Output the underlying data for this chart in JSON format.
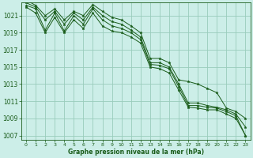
{
  "title": "Graphe pression niveau de la mer (hPa)",
  "bg_color": "#cceee8",
  "grid_color": "#99ccbb",
  "line_color": "#1a5c1a",
  "marker_color": "#1a5c1a",
  "xlim": [
    -0.5,
    23.5
  ],
  "ylim": [
    1006.5,
    1022.5
  ],
  "yticks": [
    1007,
    1009,
    1011,
    1013,
    1015,
    1017,
    1019,
    1021
  ],
  "xticks": [
    0,
    1,
    2,
    3,
    4,
    5,
    6,
    7,
    8,
    9,
    10,
    11,
    12,
    13,
    14,
    15,
    16,
    17,
    18,
    19,
    20,
    21,
    22,
    23
  ],
  "series": [
    [
      1022.2,
      1021.8,
      1019.3,
      1021.3,
      1019.2,
      1021.0,
      1020.0,
      1021.8,
      1020.5,
      1019.8,
      1019.5,
      1019.0,
      1018.2,
      1015.3,
      1015.2,
      1014.8,
      1012.7,
      1010.5,
      1010.5,
      1010.3,
      1010.2,
      1009.8,
      1009.3,
      1007.0
    ],
    [
      1022.0,
      1021.3,
      1019.0,
      1020.8,
      1019.0,
      1020.5,
      1019.5,
      1021.3,
      1019.8,
      1019.2,
      1019.0,
      1018.5,
      1017.8,
      1015.0,
      1014.8,
      1014.3,
      1012.3,
      1010.3,
      1010.2,
      1010.0,
      1010.0,
      1009.5,
      1009.0,
      1007.0
    ],
    [
      1022.5,
      1022.0,
      1020.5,
      1021.5,
      1020.0,
      1021.3,
      1020.5,
      1022.0,
      1021.0,
      1020.3,
      1020.0,
      1019.3,
      1018.5,
      1015.5,
      1015.5,
      1015.0,
      1013.0,
      1010.8,
      1010.8,
      1010.5,
      1010.3,
      1010.0,
      1009.5,
      1008.0
    ],
    [
      1022.8,
      1022.2,
      1021.0,
      1021.8,
      1020.5,
      1021.5,
      1021.0,
      1022.3,
      1021.5,
      1020.8,
      1020.5,
      1019.8,
      1019.0,
      1016.0,
      1016.0,
      1015.5,
      1013.5,
      1013.3,
      1013.0,
      1012.5,
      1012.0,
      1010.2,
      1009.8,
      1009.0
    ]
  ]
}
